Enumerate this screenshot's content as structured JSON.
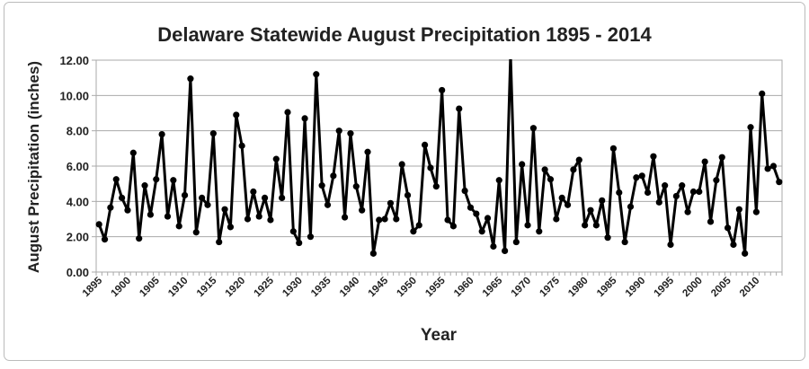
{
  "chart_data": {
    "type": "line",
    "title": "Delaware Statewide August Precipitation 1895 - 2014",
    "xlabel": "Year",
    "ylabel": "August Precipitation (inches)",
    "ylim": [
      0,
      12
    ],
    "yticks": [
      "0.00",
      "2.00",
      "4.00",
      "6.00",
      "8.00",
      "10.00",
      "12.00"
    ],
    "xticks": [
      "1895",
      "1900",
      "1905",
      "1910",
      "1915",
      "1920",
      "1925",
      "1930",
      "1935",
      "1940",
      "1945",
      "1950",
      "1955",
      "1960",
      "1965",
      "1970",
      "1975",
      "1980",
      "1985",
      "1990",
      "1995",
      "2000",
      "2005",
      "2010"
    ],
    "grid": true,
    "legend": "none",
    "x_start": 1895,
    "x_end": 2014,
    "series": [
      {
        "name": "August Precipitation",
        "color": "#000000",
        "values": [
          2.7,
          1.85,
          3.65,
          5.25,
          4.2,
          3.5,
          6.75,
          1.9,
          4.9,
          3.25,
          5.25,
          7.8,
          3.15,
          5.2,
          2.6,
          4.35,
          10.95,
          2.25,
          4.2,
          3.8,
          7.85,
          1.7,
          3.55,
          2.55,
          8.9,
          7.15,
          3.0,
          4.55,
          3.15,
          4.2,
          2.95,
          6.4,
          4.2,
          9.05,
          2.3,
          1.65,
          8.7,
          2.0,
          11.2,
          4.9,
          3.8,
          5.45,
          8.0,
          3.1,
          7.85,
          4.85,
          3.5,
          6.8,
          1.05,
          2.95,
          3.0,
          3.9,
          3.0,
          6.1,
          4.35,
          2.3,
          2.65,
          7.2,
          5.9,
          4.85,
          10.3,
          2.95,
          2.6,
          9.25,
          4.6,
          3.65,
          3.3,
          2.3,
          3.05,
          1.45,
          5.2,
          1.2,
          12.5,
          1.7,
          6.1,
          2.65,
          8.15,
          2.3,
          5.8,
          5.25,
          3.0,
          4.2,
          3.8,
          5.8,
          6.35,
          2.65,
          3.5,
          2.65,
          4.05,
          1.95,
          7.0,
          4.5,
          1.7,
          3.7,
          5.35,
          5.45,
          4.5,
          6.55,
          3.95,
          4.9,
          1.55,
          4.3,
          4.9,
          3.4,
          4.55,
          4.55,
          6.25,
          2.85,
          5.2,
          6.5,
          2.5,
          1.55,
          3.55,
          1.05,
          8.2,
          3.4,
          10.1,
          5.85,
          6.0,
          5.1
        ]
      }
    ]
  }
}
